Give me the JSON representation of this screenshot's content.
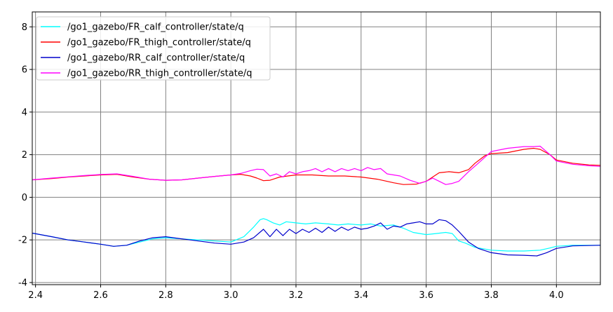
{
  "chart_data": {
    "type": "line",
    "title": "",
    "xlabel": "",
    "ylabel": "",
    "xlim": [
      2.39,
      4.135
    ],
    "ylim": [
      -4.1,
      8.7
    ],
    "xticks": [
      "2.4",
      "2.6",
      "2.8",
      "3.0",
      "3.2",
      "3.4",
      "3.6",
      "3.8",
      "4.0"
    ],
    "yticks": [
      "-4",
      "-2",
      "0",
      "2",
      "4",
      "6",
      "8"
    ],
    "grid": true,
    "legend_position": "top-left",
    "series": [
      {
        "name": "/go1_gazebo/FR_calf_controller/state/q",
        "color": "#00ffff",
        "x": [
          2.39,
          2.45,
          2.5,
          2.55,
          2.6,
          2.64,
          2.68,
          2.72,
          2.76,
          2.8,
          2.85,
          2.9,
          2.95,
          3.0,
          3.04,
          3.07,
          3.09,
          3.1,
          3.11,
          3.13,
          3.15,
          3.17,
          3.2,
          3.23,
          3.26,
          3.3,
          3.33,
          3.36,
          3.4,
          3.43,
          3.46,
          3.5,
          3.53,
          3.56,
          3.6,
          3.63,
          3.66,
          3.68,
          3.7,
          3.72,
          3.75,
          3.8,
          3.85,
          3.9,
          3.95,
          3.98,
          4.0,
          4.05,
          4.135
        ],
        "y": [
          -1.68,
          -1.85,
          -2.0,
          -2.1,
          -2.2,
          -2.3,
          -2.25,
          -2.1,
          -1.95,
          -1.9,
          -1.95,
          -2.0,
          -2.05,
          -2.1,
          -1.85,
          -1.4,
          -1.05,
          -1.0,
          -1.05,
          -1.2,
          -1.3,
          -1.15,
          -1.2,
          -1.25,
          -1.2,
          -1.25,
          -1.3,
          -1.25,
          -1.3,
          -1.25,
          -1.35,
          -1.3,
          -1.45,
          -1.65,
          -1.75,
          -1.7,
          -1.65,
          -1.7,
          -2.05,
          -2.15,
          -2.35,
          -2.48,
          -2.52,
          -2.52,
          -2.48,
          -2.38,
          -2.3,
          -2.25,
          -2.25
        ]
      },
      {
        "name": "/go1_gazebo/FR_thigh_controller/state/q",
        "color": "#ff0000",
        "x": [
          2.39,
          2.45,
          2.5,
          2.55,
          2.6,
          2.65,
          2.7,
          2.75,
          2.8,
          2.85,
          2.9,
          2.95,
          3.0,
          3.03,
          3.06,
          3.08,
          3.1,
          3.12,
          3.15,
          3.2,
          3.25,
          3.3,
          3.35,
          3.4,
          3.45,
          3.5,
          3.53,
          3.57,
          3.6,
          3.62,
          3.64,
          3.67,
          3.7,
          3.73,
          3.75,
          3.78,
          3.8,
          3.85,
          3.9,
          3.93,
          3.95,
          3.98,
          4.0,
          4.05,
          4.1,
          4.135
        ],
        "y": [
          0.82,
          0.88,
          0.95,
          1.0,
          1.05,
          1.08,
          0.95,
          0.85,
          0.8,
          0.82,
          0.9,
          0.98,
          1.05,
          1.08,
          1.0,
          0.9,
          0.78,
          0.8,
          0.95,
          1.05,
          1.05,
          1.0,
          1.0,
          0.95,
          0.85,
          0.68,
          0.6,
          0.62,
          0.75,
          0.95,
          1.15,
          1.2,
          1.15,
          1.3,
          1.6,
          1.95,
          2.05,
          2.1,
          2.25,
          2.3,
          2.25,
          2.0,
          1.75,
          1.6,
          1.52,
          1.5
        ]
      },
      {
        "name": "/go1_gazebo/RR_calf_controller/state/q",
        "color": "#0000cc",
        "x": [
          2.39,
          2.45,
          2.5,
          2.55,
          2.6,
          2.64,
          2.68,
          2.72,
          2.76,
          2.8,
          2.85,
          2.9,
          2.95,
          3.0,
          3.04,
          3.07,
          3.1,
          3.12,
          3.14,
          3.16,
          3.18,
          3.2,
          3.22,
          3.24,
          3.26,
          3.28,
          3.3,
          3.32,
          3.34,
          3.36,
          3.38,
          3.4,
          3.42,
          3.44,
          3.46,
          3.48,
          3.5,
          3.52,
          3.54,
          3.56,
          3.58,
          3.6,
          3.62,
          3.64,
          3.66,
          3.68,
          3.7,
          3.73,
          3.76,
          3.8,
          3.85,
          3.9,
          3.94,
          3.97,
          4.0,
          4.05,
          4.135
        ],
        "y": [
          -1.68,
          -1.85,
          -2.0,
          -2.1,
          -2.2,
          -2.3,
          -2.25,
          -2.05,
          -1.9,
          -1.85,
          -1.95,
          -2.05,
          -2.15,
          -2.2,
          -2.1,
          -1.9,
          -1.5,
          -1.85,
          -1.5,
          -1.8,
          -1.5,
          -1.7,
          -1.5,
          -1.65,
          -1.45,
          -1.65,
          -1.4,
          -1.6,
          -1.4,
          -1.55,
          -1.4,
          -1.5,
          -1.45,
          -1.35,
          -1.2,
          -1.5,
          -1.35,
          -1.4,
          -1.25,
          -1.2,
          -1.15,
          -1.25,
          -1.25,
          -1.05,
          -1.1,
          -1.3,
          -1.6,
          -2.1,
          -2.4,
          -2.6,
          -2.7,
          -2.72,
          -2.75,
          -2.6,
          -2.4,
          -2.28,
          -2.25
        ]
      },
      {
        "name": "/go1_gazebo/RR_thigh_controller/state/q",
        "color": "#ff00ff",
        "x": [
          2.39,
          2.45,
          2.5,
          2.55,
          2.6,
          2.65,
          2.7,
          2.75,
          2.8,
          2.85,
          2.9,
          2.95,
          3.0,
          3.03,
          3.06,
          3.08,
          3.1,
          3.12,
          3.14,
          3.16,
          3.18,
          3.2,
          3.22,
          3.24,
          3.26,
          3.28,
          3.3,
          3.32,
          3.34,
          3.36,
          3.38,
          3.4,
          3.42,
          3.44,
          3.46,
          3.48,
          3.5,
          3.52,
          3.55,
          3.58,
          3.6,
          3.62,
          3.64,
          3.66,
          3.68,
          3.7,
          3.73,
          3.76,
          3.8,
          3.85,
          3.9,
          3.93,
          3.95,
          3.98,
          4.0,
          4.05,
          4.1,
          4.135
        ],
        "y": [
          0.82,
          0.9,
          0.96,
          1.02,
          1.07,
          1.1,
          0.98,
          0.85,
          0.8,
          0.82,
          0.9,
          0.98,
          1.05,
          1.12,
          1.25,
          1.32,
          1.3,
          1.0,
          1.1,
          0.95,
          1.2,
          1.1,
          1.2,
          1.25,
          1.35,
          1.2,
          1.35,
          1.2,
          1.35,
          1.25,
          1.35,
          1.25,
          1.4,
          1.3,
          1.35,
          1.1,
          1.05,
          1.0,
          0.8,
          0.65,
          0.75,
          0.9,
          0.75,
          0.6,
          0.65,
          0.75,
          1.2,
          1.6,
          2.15,
          2.3,
          2.38,
          2.38,
          2.4,
          2.0,
          1.7,
          1.55,
          1.48,
          1.45
        ]
      }
    ]
  }
}
